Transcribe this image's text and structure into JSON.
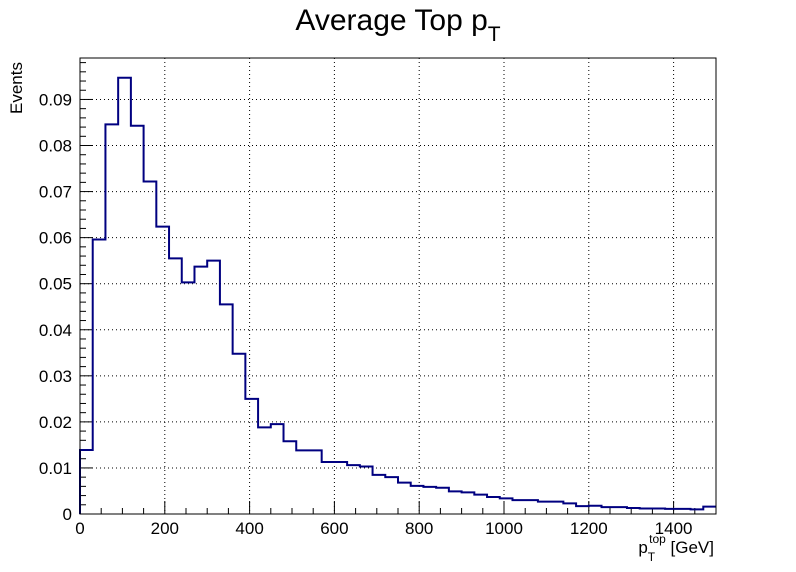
{
  "chart_data": {
    "type": "histogram",
    "title_main": "Average Top p",
    "title_sub": "T",
    "xlabel_main": "p",
    "xlabel_sub": "T",
    "xlabel_sup": "top",
    "xlabel_unit": " [GeV]",
    "ylabel": "Events",
    "xlim": [
      0,
      1500
    ],
    "ylim": [
      0,
      0.099
    ],
    "grid": true,
    "line_color": "#000080",
    "x_ticks": [
      0,
      200,
      400,
      600,
      800,
      1000,
      1200,
      1400
    ],
    "x_tick_labels": [
      "0",
      "200",
      "400",
      "600",
      "800",
      "1000",
      "1200",
      "1400"
    ],
    "y_ticks": [
      0,
      0.01,
      0.02,
      0.03,
      0.04,
      0.05,
      0.06,
      0.07,
      0.08,
      0.09
    ],
    "y_tick_labels": [
      "0",
      "0.01",
      "0.02",
      "0.03",
      "0.04",
      "0.05",
      "0.06",
      "0.07",
      "0.08",
      "0.09"
    ],
    "bin_edges": [
      0,
      30,
      60,
      90,
      120,
      150,
      180,
      210,
      240,
      270,
      300,
      330,
      360,
      390,
      420,
      450,
      480,
      510,
      540,
      570,
      600,
      630,
      660,
      690,
      720,
      750,
      780,
      810,
      840,
      870,
      900,
      930,
      960,
      990,
      1020,
      1050,
      1080,
      1110,
      1140,
      1170,
      1200,
      1230,
      1260,
      1290,
      1320,
      1350,
      1380,
      1410,
      1440,
      1470,
      1500
    ],
    "values": [
      0.0139,
      0.0596,
      0.0846,
      0.0947,
      0.0843,
      0.0722,
      0.0624,
      0.0555,
      0.0503,
      0.0537,
      0.055,
      0.0455,
      0.0348,
      0.025,
      0.0188,
      0.0195,
      0.0158,
      0.0138,
      0.0138,
      0.0113,
      0.0113,
      0.0106,
      0.0103,
      0.0085,
      0.008,
      0.0068,
      0.0061,
      0.0059,
      0.0057,
      0.0049,
      0.0047,
      0.0042,
      0.0037,
      0.0034,
      0.003,
      0.003,
      0.0027,
      0.0027,
      0.0023,
      0.0017,
      0.0018,
      0.0015,
      0.0015,
      0.0013,
      0.0012,
      0.0012,
      0.0011,
      0.0011,
      0.001,
      0.0016
    ]
  }
}
